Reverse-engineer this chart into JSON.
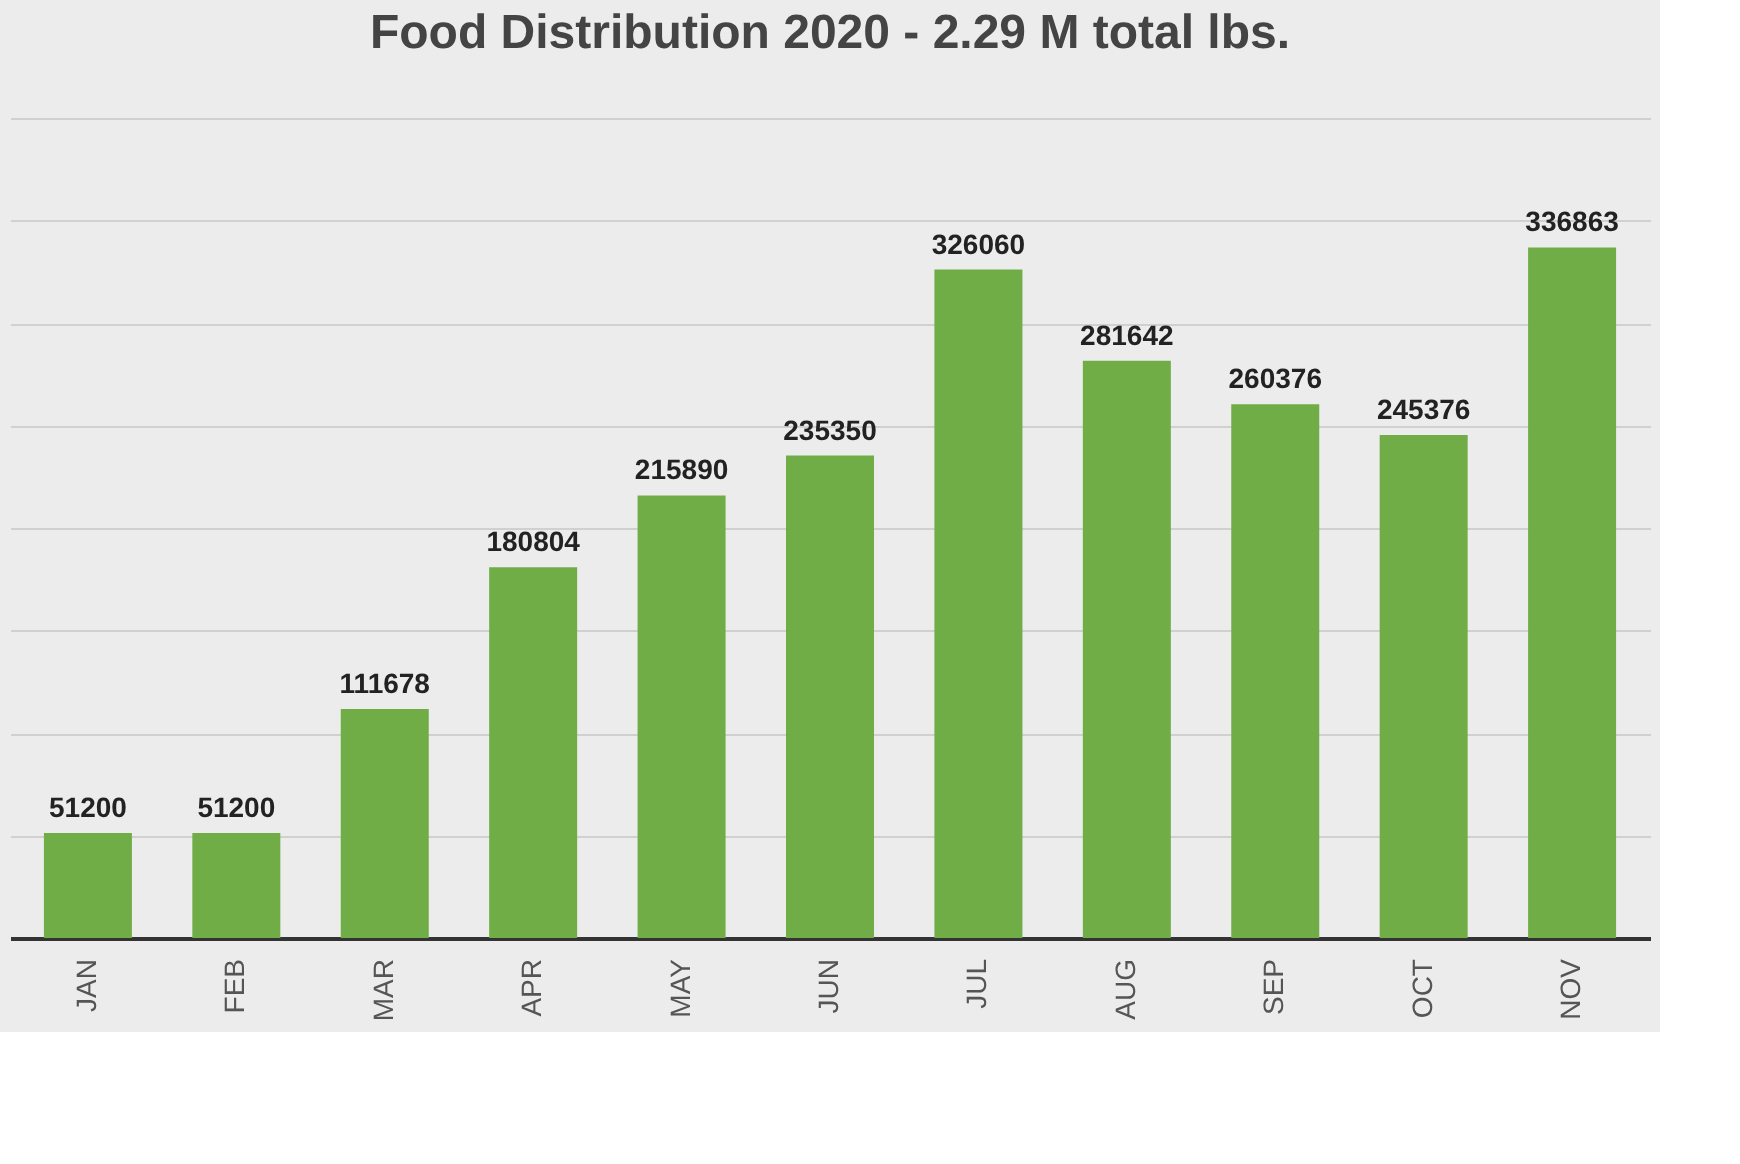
{
  "chart_data": {
    "type": "bar",
    "title": "Food Distribution 2020 - 2.29 M total lbs.",
    "categories": [
      "JAN",
      "FEB",
      "MAR",
      "APR",
      "MAY",
      "JUN",
      "JUL",
      "AUG",
      "SEP",
      "OCT",
      "NOV"
    ],
    "values": [
      51200,
      51200,
      111678,
      180804,
      215890,
      235350,
      326060,
      281642,
      260376,
      245376,
      336863
    ],
    "color": "#70ad47",
    "ylim": [
      0,
      400000
    ],
    "yticks": [
      {
        "value": 0,
        "label": null
      },
      {
        "value": 50000,
        "label": null
      },
      {
        "value": 100000,
        "label": null
      },
      {
        "value": 150000,
        "label": null
      },
      {
        "value": 200000,
        "label": null
      },
      {
        "value": 250000,
        "label": null
      },
      {
        "value": 300000,
        "label": null
      },
      {
        "value": 350000,
        "label": null
      },
      {
        "value": 400000,
        "label": null
      }
    ],
    "tick_labels": "x",
    "grid": "y",
    "data_labels": true
  }
}
